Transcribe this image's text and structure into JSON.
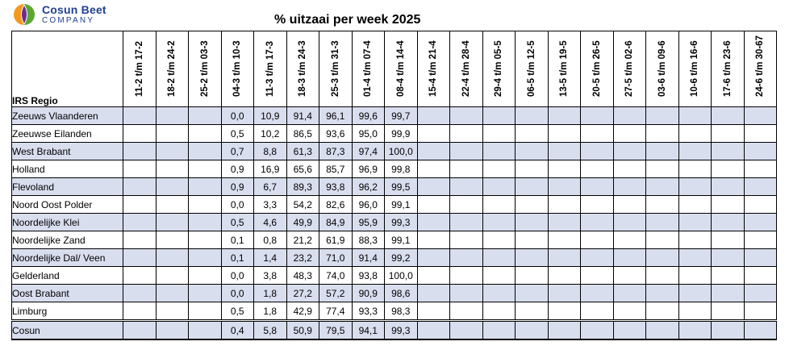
{
  "brand": {
    "name": "Cosun Beet",
    "sub": "COMPANY",
    "colors": {
      "orange": "#f39a1e",
      "green": "#5aa832",
      "purple": "#6b2d8f",
      "blue": "#1f3f8f"
    }
  },
  "title": "% uitzaai per week 2025",
  "table": {
    "region_header": "IRS Regio",
    "row_shade_color": "#d9deef",
    "columns": [
      "11-2 t/m 17-2",
      "18-2 t/m 24-2",
      "25-2 t/m 03-3",
      "04-3 t/m 10-3",
      "11-3 t/m 17-3",
      "18-3 t/m 24-3",
      "25-3 t/m 31-3",
      "01-4 t/m 07-4",
      "08-4 t/m 14-4",
      "15-4 t/m 21-4",
      "22-4 t/m 28-4",
      "29-4 t/m 05-5",
      "06-5 t/m 12-5",
      "13-5 t/m 19-5",
      "20-5 t/m 26-5",
      "27-5 t/m 02-6",
      "03-6 t/m 09-6",
      "10-6 t/m 16-6",
      "17-6 t/m 23-6",
      "24-6 t/m 30-67"
    ],
    "rows": [
      {
        "region": "Zeeuws Vlaanderen",
        "values": [
          "",
          "",
          "",
          "0,0",
          "10,9",
          "91,4",
          "96,1",
          "99,6",
          "99,7",
          "",
          "",
          "",
          "",
          "",
          "",
          "",
          "",
          "",
          "",
          ""
        ]
      },
      {
        "region": "Zeeuwse Eilanden",
        "values": [
          "",
          "",
          "",
          "0,5",
          "10,2",
          "86,5",
          "93,6",
          "95,0",
          "99,9",
          "",
          "",
          "",
          "",
          "",
          "",
          "",
          "",
          "",
          "",
          ""
        ]
      },
      {
        "region": "West Brabant",
        "values": [
          "",
          "",
          "",
          "0,7",
          "8,8",
          "61,3",
          "87,3",
          "97,4",
          "100,0",
          "",
          "",
          "",
          "",
          "",
          "",
          "",
          "",
          "",
          "",
          ""
        ]
      },
      {
        "region": "Holland",
        "values": [
          "",
          "",
          "",
          "0,9",
          "16,9",
          "65,6",
          "85,7",
          "96,9",
          "99,8",
          "",
          "",
          "",
          "",
          "",
          "",
          "",
          "",
          "",
          "",
          ""
        ]
      },
      {
        "region": "Flevoland",
        "values": [
          "",
          "",
          "",
          "0,9",
          "6,7",
          "89,3",
          "93,8",
          "96,2",
          "99,5",
          "",
          "",
          "",
          "",
          "",
          "",
          "",
          "",
          "",
          "",
          ""
        ]
      },
      {
        "region": "Noord Oost Polder",
        "values": [
          "",
          "",
          "",
          "0,0",
          "3,3",
          "54,2",
          "82,6",
          "96,0",
          "99,1",
          "",
          "",
          "",
          "",
          "",
          "",
          "",
          "",
          "",
          "",
          ""
        ]
      },
      {
        "region": "Noordelijke Klei",
        "values": [
          "",
          "",
          "",
          "0,5",
          "4,6",
          "49,9",
          "84,9",
          "95,9",
          "99,3",
          "",
          "",
          "",
          "",
          "",
          "",
          "",
          "",
          "",
          "",
          ""
        ]
      },
      {
        "region": "Noordelijke Zand",
        "values": [
          "",
          "",
          "",
          "0,1",
          "0,8",
          "21,2",
          "61,9",
          "88,3",
          "99,1",
          "",
          "",
          "",
          "",
          "",
          "",
          "",
          "",
          "",
          "",
          ""
        ]
      },
      {
        "region": "Noordelijke Dal/ Veen",
        "values": [
          "",
          "",
          "",
          "0,1",
          "1,4",
          "23,2",
          "71,0",
          "91,4",
          "99,2",
          "",
          "",
          "",
          "",
          "",
          "",
          "",
          "",
          "",
          "",
          ""
        ]
      },
      {
        "region": "Gelderland",
        "values": [
          "",
          "",
          "",
          "0,0",
          "3,8",
          "48,3",
          "74,0",
          "93,8",
          "100,0",
          "",
          "",
          "",
          "",
          "",
          "",
          "",
          "",
          "",
          "",
          ""
        ]
      },
      {
        "region": "Oost Brabant",
        "values": [
          "",
          "",
          "",
          "0,0",
          "1,8",
          "27,2",
          "57,2",
          "90,9",
          "98,6",
          "",
          "",
          "",
          "",
          "",
          "",
          "",
          "",
          "",
          "",
          ""
        ]
      },
      {
        "region": "Limburg",
        "values": [
          "",
          "",
          "",
          "0,5",
          "1,8",
          "42,9",
          "77,4",
          "93,3",
          "98,3",
          "",
          "",
          "",
          "",
          "",
          "",
          "",
          "",
          "",
          "",
          ""
        ]
      },
      {
        "region": "Cosun",
        "values": [
          "",
          "",
          "",
          "0,4",
          "5,8",
          "50,9",
          "79,5",
          "94,1",
          "99,3",
          "",
          "",
          "",
          "",
          "",
          "",
          "",
          "",
          "",
          "",
          ""
        ]
      }
    ]
  }
}
